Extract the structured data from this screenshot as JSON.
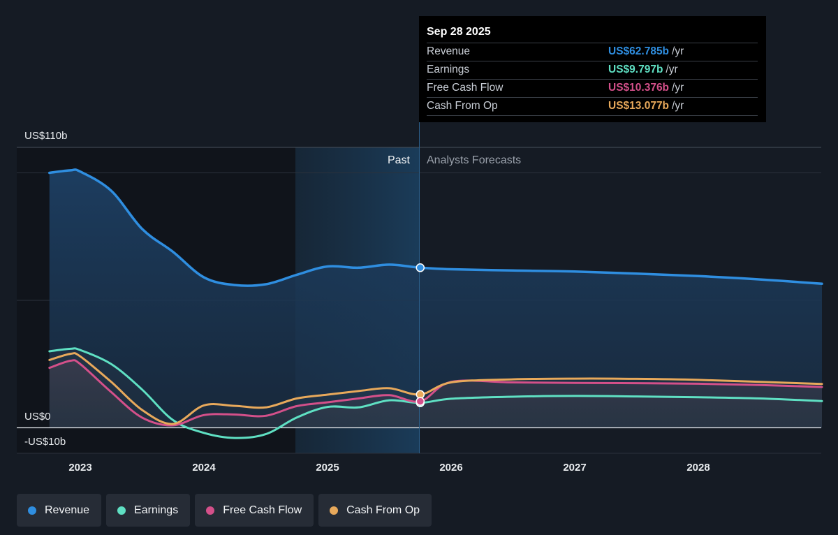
{
  "chart_data": {
    "type": "line",
    "y_unit": "US$ b/yr",
    "ylim": [
      -10,
      110
    ],
    "y_tick_labels": [
      "US$110b",
      "US$0",
      "-US$10b"
    ],
    "x_tick_labels": [
      "2023",
      "2024",
      "2025",
      "2026",
      "2027",
      "2028"
    ],
    "section_labels": {
      "past": "Past",
      "forecast": "Analysts Forecasts"
    },
    "series": [
      {
        "name": "Revenue",
        "color": "#2f8ee0",
        "fill": true,
        "x": [
          2022.75,
          2022.92,
          2023.0,
          2023.25,
          2023.5,
          2023.75,
          2024.0,
          2024.25,
          2024.5,
          2024.75,
          2025.0,
          2025.25,
          2025.5,
          2025.75,
          2026.0,
          2026.5,
          2027.0,
          2027.5,
          2028.0,
          2028.5,
          2029.0
        ],
        "values": [
          100,
          101,
          100.5,
          93,
          78,
          69,
          59,
          56,
          56.3,
          60,
          63.3,
          62.8,
          64,
          62.785,
          62.2,
          61.7,
          61.3,
          60.5,
          59.5,
          58.2,
          56.5
        ]
      },
      {
        "name": "Earnings",
        "color": "#5fe0c3",
        "x": [
          2022.75,
          2022.92,
          2023.0,
          2023.25,
          2023.5,
          2023.75,
          2024.0,
          2024.25,
          2024.5,
          2024.75,
          2025.0,
          2025.25,
          2025.5,
          2025.75,
          2026.0,
          2026.5,
          2027.0,
          2027.5,
          2028.0,
          2028.5,
          2029.0
        ],
        "values": [
          30,
          31,
          30.5,
          25,
          15,
          3,
          -2,
          -4,
          -2.5,
          4,
          8.2,
          8,
          10.8,
          9.797,
          11.4,
          12.2,
          12.5,
          12.3,
          12,
          11.5,
          10.5
        ]
      },
      {
        "name": "Free Cash Flow",
        "color": "#d4508a",
        "x": [
          2022.75,
          2022.92,
          2023.0,
          2023.25,
          2023.5,
          2023.75,
          2024.0,
          2024.25,
          2024.5,
          2024.75,
          2025.0,
          2025.25,
          2025.5,
          2025.75,
          2026.0,
          2026.5,
          2027.0,
          2027.5,
          2028.0,
          2028.5,
          2029.0
        ],
        "values": [
          23.5,
          26.3,
          25,
          14,
          4,
          1,
          5,
          5.2,
          4.7,
          8.5,
          10,
          11.5,
          12.8,
          10.376,
          18,
          17.8,
          17.6,
          17.5,
          17.3,
          16.8,
          16
        ]
      },
      {
        "name": "Cash From Op",
        "color": "#e8a95b",
        "x": [
          2022.75,
          2022.92,
          2023.0,
          2023.25,
          2023.5,
          2023.75,
          2024.0,
          2024.25,
          2024.5,
          2024.75,
          2025.0,
          2025.25,
          2025.5,
          2025.75,
          2026.0,
          2026.5,
          2027.0,
          2027.5,
          2028.0,
          2028.5,
          2029.0
        ],
        "values": [
          26.6,
          29,
          28,
          18,
          7,
          1.5,
          8.8,
          8.6,
          8,
          11.5,
          13,
          14.4,
          15.5,
          13.077,
          17.8,
          19,
          19.3,
          19.2,
          18.8,
          18,
          17.2
        ]
      }
    ]
  },
  "tooltip": {
    "date": "Sep 28 2025",
    "rows": [
      {
        "name": "Revenue",
        "value": "US$62.785b",
        "unit": "/yr",
        "color": "#2f8ee0"
      },
      {
        "name": "Earnings",
        "value": "US$9.797b",
        "unit": "/yr",
        "color": "#5fe0c3"
      },
      {
        "name": "Free Cash Flow",
        "value": "US$10.376b",
        "unit": "/yr",
        "color": "#d4508a"
      },
      {
        "name": "Cash From Op",
        "value": "US$13.077b",
        "unit": "/yr",
        "color": "#e8a95b"
      }
    ]
  },
  "legend": [
    {
      "label": "Revenue",
      "color": "#2f8ee0"
    },
    {
      "label": "Earnings",
      "color": "#5fe0c3"
    },
    {
      "label": "Free Cash Flow",
      "color": "#d4508a"
    },
    {
      "label": "Cash From Op",
      "color": "#e8a95b"
    }
  ]
}
